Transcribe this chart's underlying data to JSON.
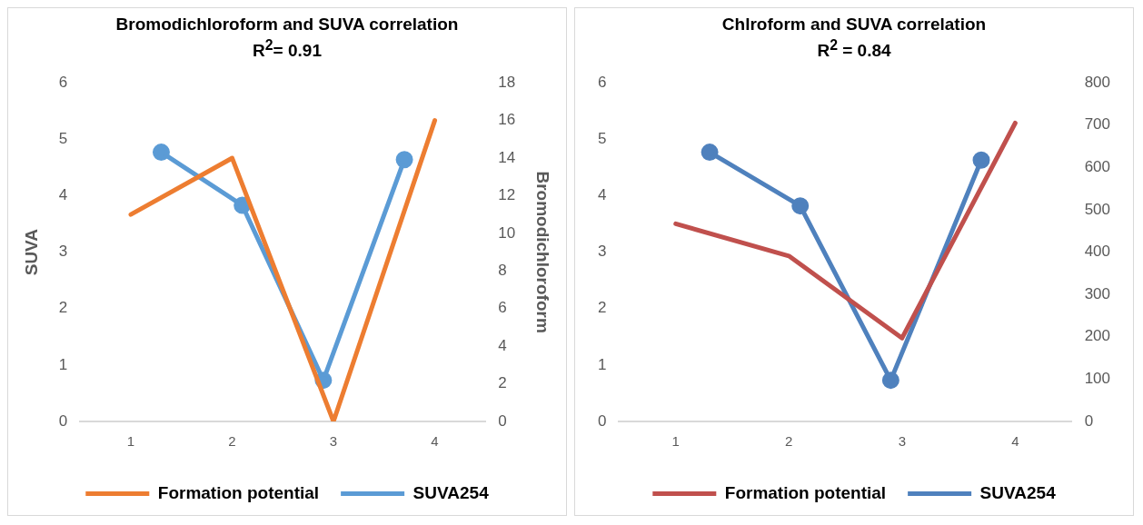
{
  "chart_data": [
    {
      "type": "line",
      "title": "Bromodichloroform and SUVA correlation",
      "subtitle": "R$^{2}$= 0.91",
      "ylabel": "SUVA",
      "y2label": "Bromodichloroform",
      "xlim": [
        0.5,
        4.5
      ],
      "xticks": [
        1,
        2,
        3,
        4
      ],
      "ylim": [
        0,
        6
      ],
      "yticks": [
        0,
        1,
        2,
        3,
        4,
        5,
        6
      ],
      "y2lim": [
        0,
        18
      ],
      "y2ticks": [
        0,
        2,
        4,
        6,
        8,
        10,
        12,
        14,
        16,
        18
      ],
      "grid": false,
      "legend": "bottom",
      "series": [
        {
          "name": "Formation potential",
          "axis": "y2",
          "color": "#ed7d31",
          "marker": "none",
          "x": [
            1,
            2,
            3,
            4
          ],
          "values": [
            11,
            14,
            0,
            16
          ]
        },
        {
          "name": "SUVA254",
          "color": "#5b9bd5",
          "marker": "circle",
          "x": [
            1.3,
            2.1,
            2.9,
            3.7
          ],
          "values": [
            4.77,
            3.83,
            0.73,
            4.64
          ]
        }
      ]
    },
    {
      "type": "line",
      "title": "Chlroform and SUVA correlation",
      "subtitle": "R$^{2}$ = 0.84",
      "xlim": [
        0.5,
        4.5
      ],
      "xticks": [
        1,
        2,
        3,
        4
      ],
      "ylim": [
        0,
        6
      ],
      "yticks": [
        0,
        1,
        2,
        3,
        4,
        5,
        6
      ],
      "y2lim": [
        0,
        800
      ],
      "y2ticks": [
        0,
        100,
        200,
        300,
        400,
        500,
        600,
        700,
        800
      ],
      "grid": false,
      "legend": "bottom",
      "series": [
        {
          "name": "Formation potential",
          "axis": "y2",
          "color": "#c0504d",
          "marker": "none",
          "x": [
            1,
            2,
            3,
            4
          ],
          "values": [
            467,
            391,
            197,
            705
          ]
        },
        {
          "name": "SUVA254",
          "color": "#4f81bd",
          "marker": "circle",
          "x": [
            1.3,
            2.1,
            2.9,
            3.7
          ],
          "values": [
            4.77,
            3.82,
            0.73,
            4.63
          ]
        }
      ]
    }
  ]
}
